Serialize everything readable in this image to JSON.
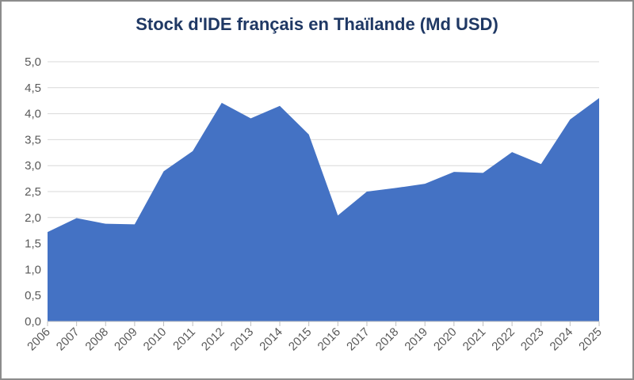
{
  "chart_data": {
    "type": "area",
    "title": "Stock d'IDE français en Thaïlande (Md USD)",
    "xlabel": "",
    "ylabel": "",
    "categories": [
      "2006",
      "2007",
      "2008",
      "2009",
      "2010",
      "2011",
      "2012",
      "2013",
      "2014",
      "2015",
      "2016",
      "2017",
      "2018",
      "2019",
      "2020",
      "2021",
      "2022",
      "2023",
      "2024",
      "2025"
    ],
    "values": [
      1.72,
      1.99,
      1.88,
      1.87,
      2.89,
      3.28,
      4.21,
      3.91,
      4.15,
      3.6,
      2.04,
      2.5,
      2.57,
      2.65,
      2.88,
      2.86,
      3.26,
      3.03,
      3.89,
      4.3
    ],
    "ylim": [
      0,
      5
    ],
    "yticks": [
      "0,0",
      "0,5",
      "1,0",
      "1,5",
      "2,0",
      "2,5",
      "3,0",
      "3,5",
      "4,0",
      "4,5",
      "5,0"
    ],
    "grid": true,
    "colors": {
      "area": "#4472c4",
      "title": "#1f3864",
      "grid": "#d9d9d9",
      "axis": "#bfbfbf"
    }
  }
}
